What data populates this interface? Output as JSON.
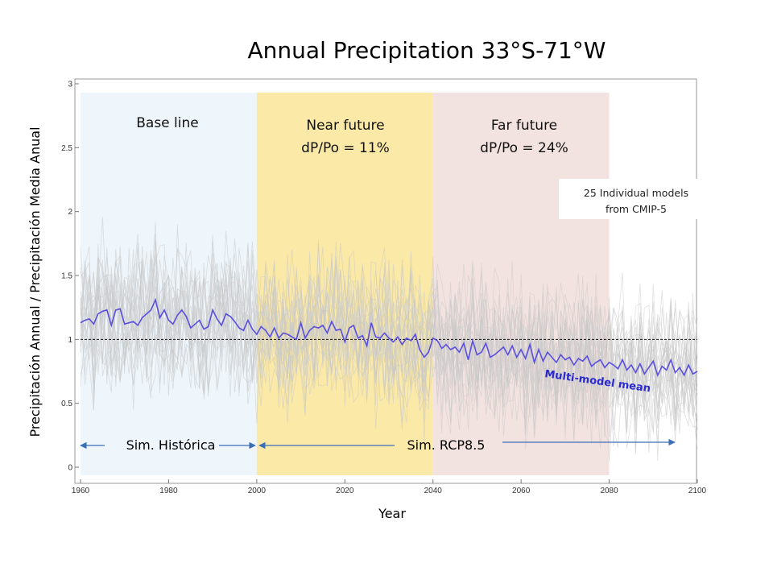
{
  "chart_data": {
    "type": "line",
    "title": "Annual Precipitation 33°S-71°W",
    "xlabel": "Year",
    "ylabel": "Precipitación Annual / Precipitación Media Anual",
    "xlim": [
      1960,
      2100
    ],
    "ylim": [
      0,
      3
    ],
    "x_ticks": [
      "1960",
      "1980",
      "2000",
      "2020",
      "2040",
      "2060",
      "2080",
      "2100"
    ],
    "y_ticks": [
      "0",
      "0.5",
      "1",
      "1.5",
      "2",
      "2.5",
      "3"
    ],
    "reference_line": 1,
    "periods": [
      {
        "label": "Base line",
        "start": 1960,
        "end": 2000,
        "color": "#eef5fb"
      },
      {
        "label": "Near future",
        "sublabel": "dP/Po = 11%",
        "start": 2000,
        "end": 2040,
        "color": "#fbe9a7"
      },
      {
        "label": "Far future",
        "sublabel": "dP/Po = 24%",
        "start": 2040,
        "end": 2080,
        "color": "#f3e3e0"
      }
    ],
    "annotations": {
      "individual_models": [
        "25 Individual models",
        "from CMIP-5"
      ],
      "multi_model_mean": "Multi-model mean",
      "sim_historica": "Sim. Histórica",
      "sim_rcp": "Sim. RCP8.5"
    },
    "series": [
      {
        "name": "Multi-model mean",
        "color": "#5a4fe0",
        "x_start": 1960,
        "x_step": 1,
        "values": [
          1.13,
          1.15,
          1.16,
          1.12,
          1.2,
          1.22,
          1.23,
          1.11,
          1.23,
          1.24,
          1.12,
          1.13,
          1.14,
          1.11,
          1.17,
          1.2,
          1.23,
          1.31,
          1.17,
          1.23,
          1.15,
          1.12,
          1.19,
          1.23,
          1.18,
          1.09,
          1.12,
          1.15,
          1.08,
          1.1,
          1.23,
          1.16,
          1.11,
          1.2,
          1.18,
          1.14,
          1.09,
          1.07,
          1.15,
          1.08,
          1.04,
          1.1,
          1.07,
          1.02,
          1.09,
          1.01,
          1.05,
          1.04,
          1.02,
          1.0,
          1.13,
          1.01,
          1.07,
          1.1,
          1.09,
          1.11,
          1.05,
          1.14,
          1.07,
          1.08,
          0.98,
          1.09,
          1.11,
          1.01,
          1.03,
          0.95,
          1.13,
          1.02,
          1.01,
          1.05,
          1.01,
          0.98,
          1.02,
          0.96,
          1.01,
          0.99,
          1.04,
          0.92,
          0.86,
          0.9,
          1.01,
          0.99,
          0.93,
          0.96,
          0.92,
          0.94,
          0.9,
          0.97,
          0.84,
          0.99,
          0.88,
          0.9,
          0.97,
          0.86,
          0.88,
          0.91,
          0.94,
          0.88,
          0.95,
          0.86,
          0.92,
          0.85,
          0.96,
          0.82,
          0.92,
          0.83,
          0.9,
          0.86,
          0.82,
          0.88,
          0.84,
          0.86,
          0.8,
          0.85,
          0.83,
          0.87,
          0.79,
          0.82,
          0.84,
          0.78,
          0.82,
          0.8,
          0.77,
          0.84,
          0.76,
          0.8,
          0.74,
          0.81,
          0.73,
          0.78,
          0.83,
          0.72,
          0.79,
          0.76,
          0.84,
          0.74,
          0.78,
          0.72,
          0.8,
          0.73,
          0.75
        ]
      }
    ]
  }
}
